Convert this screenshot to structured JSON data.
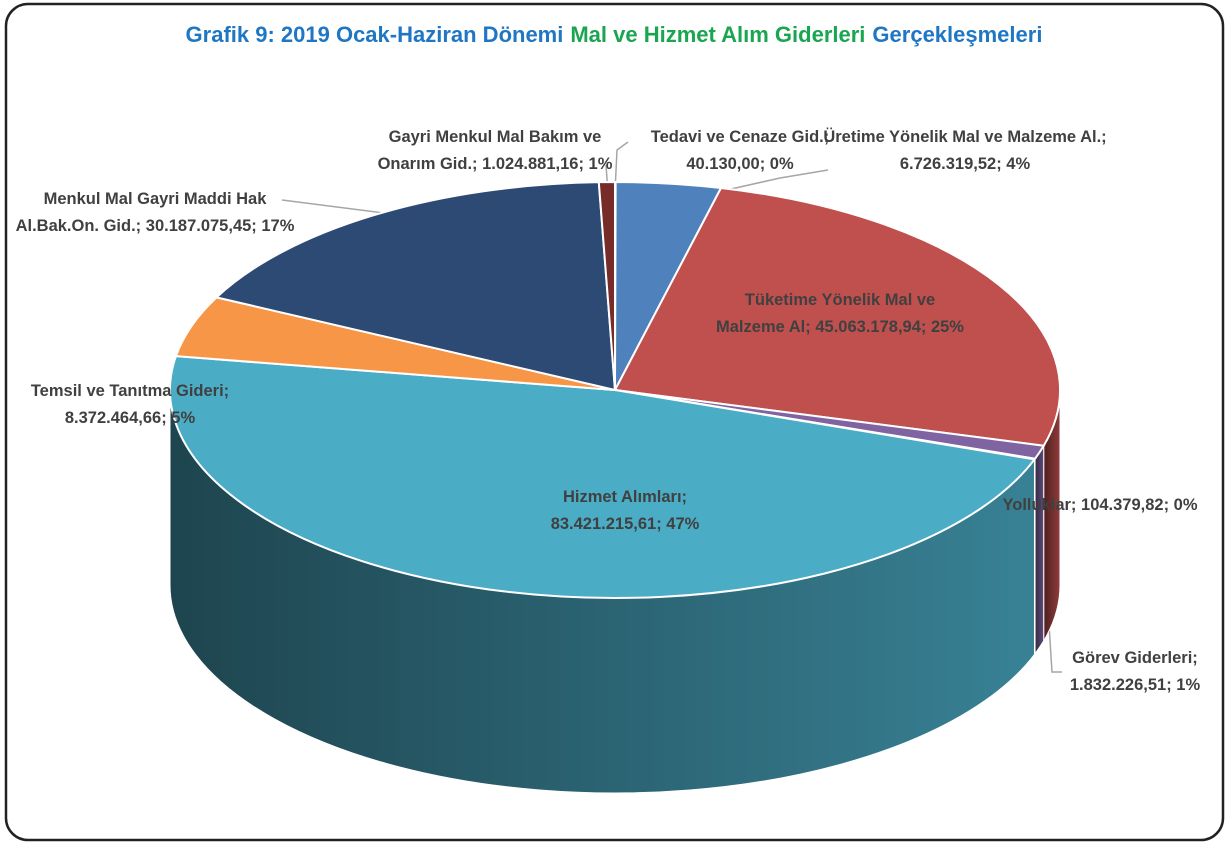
{
  "chart_data": {
    "type": "pie",
    "title_parts": [
      {
        "text": "Grafik 9: 2019 Ocak-Haziran Dönemi",
        "color": "#1f77c4"
      },
      {
        "text": "Mal ve Hizmet Alım Giderleri",
        "color": "#1aa650"
      },
      {
        "text": "Gerçekleşmeleri",
        "color": "#1f77c4"
      }
    ],
    "categories": [
      "Tedavi ve Cenaze Gid.;",
      "Üretime Yönelik Mal ve Malzeme Al.;",
      "Tüketime Yönelik Mal ve Malzeme Al;",
      "Görev Giderleri;",
      "Yolluklar;",
      "Hizmet Alımları;",
      "Temsil ve Tanıtma Gideri;",
      "Menkul Mal Gayri Maddi Hak Al.Bak.On. Gid.;",
      "Gayri Menkul Mal Bakım ve Onarım Gid.;"
    ],
    "values": [
      40130.0,
      6726319.52,
      45063178.94,
      1832226.51,
      104379.82,
      83421215.61,
      8372464.66,
      30187075.45,
      1024881.16
    ],
    "value_labels": [
      "40.130,00; 0%",
      "6.726.319,52; 4%",
      "45.063.178,94; 25%",
      "1.832.226,51; 1%",
      "104.379,82; 0%",
      "83.421.215,61; 47%",
      "8.372.464,66; 5%",
      "30.187.075,45; 17%",
      "1.024.881,16; 1%"
    ],
    "colors": [
      "#76923c",
      "#4f81bd",
      "#c0504d",
      "#8064a2",
      "#1f3a5a",
      "#4bacc6",
      "#f79646",
      "#2c4a74",
      "#772c2a"
    ]
  }
}
